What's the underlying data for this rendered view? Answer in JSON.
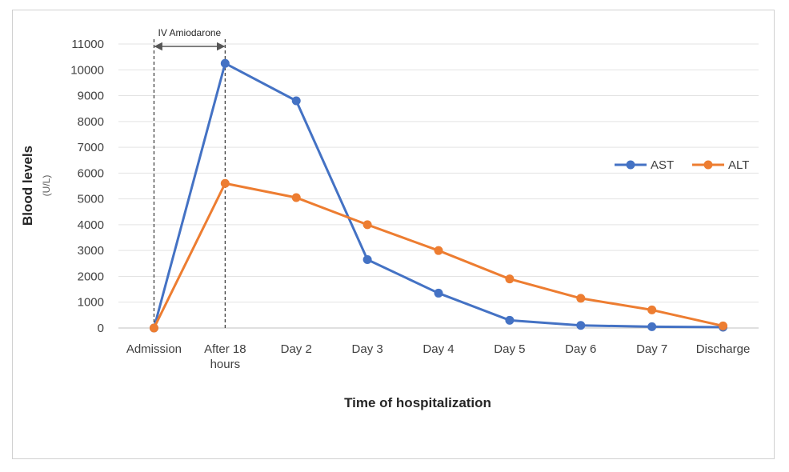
{
  "chart_data": {
    "type": "line",
    "categories": [
      "Admission",
      "After 18\nhours",
      "Day 2",
      "Day 3",
      "Day 4",
      "Day 5",
      "Day 6",
      "Day 7",
      "Discharge"
    ],
    "series": [
      {
        "name": "AST",
        "color": "#4472c4",
        "values": [
          0,
          10250,
          8800,
          2650,
          1350,
          300,
          100,
          50,
          30
        ]
      },
      {
        "name": "ALT",
        "color": "#ed7d31",
        "values": [
          0,
          5600,
          5050,
          4000,
          3000,
          1900,
          1150,
          700,
          80
        ]
      }
    ],
    "title": "",
    "xlabel": "Time of hospitalization",
    "ylabel": "Blood levels",
    "ylabel_unit": "(U/L)",
    "ylim": [
      0,
      11000
    ],
    "yticks": [
      0,
      1000,
      2000,
      3000,
      4000,
      5000,
      6000,
      7000,
      8000,
      9000,
      10000,
      11000
    ],
    "grid": true,
    "legend_position": "right",
    "annotation": {
      "label": "IV Amiodarone",
      "from_category": 0,
      "to_category": 1,
      "style": "dashed-bracket-arrow"
    }
  }
}
